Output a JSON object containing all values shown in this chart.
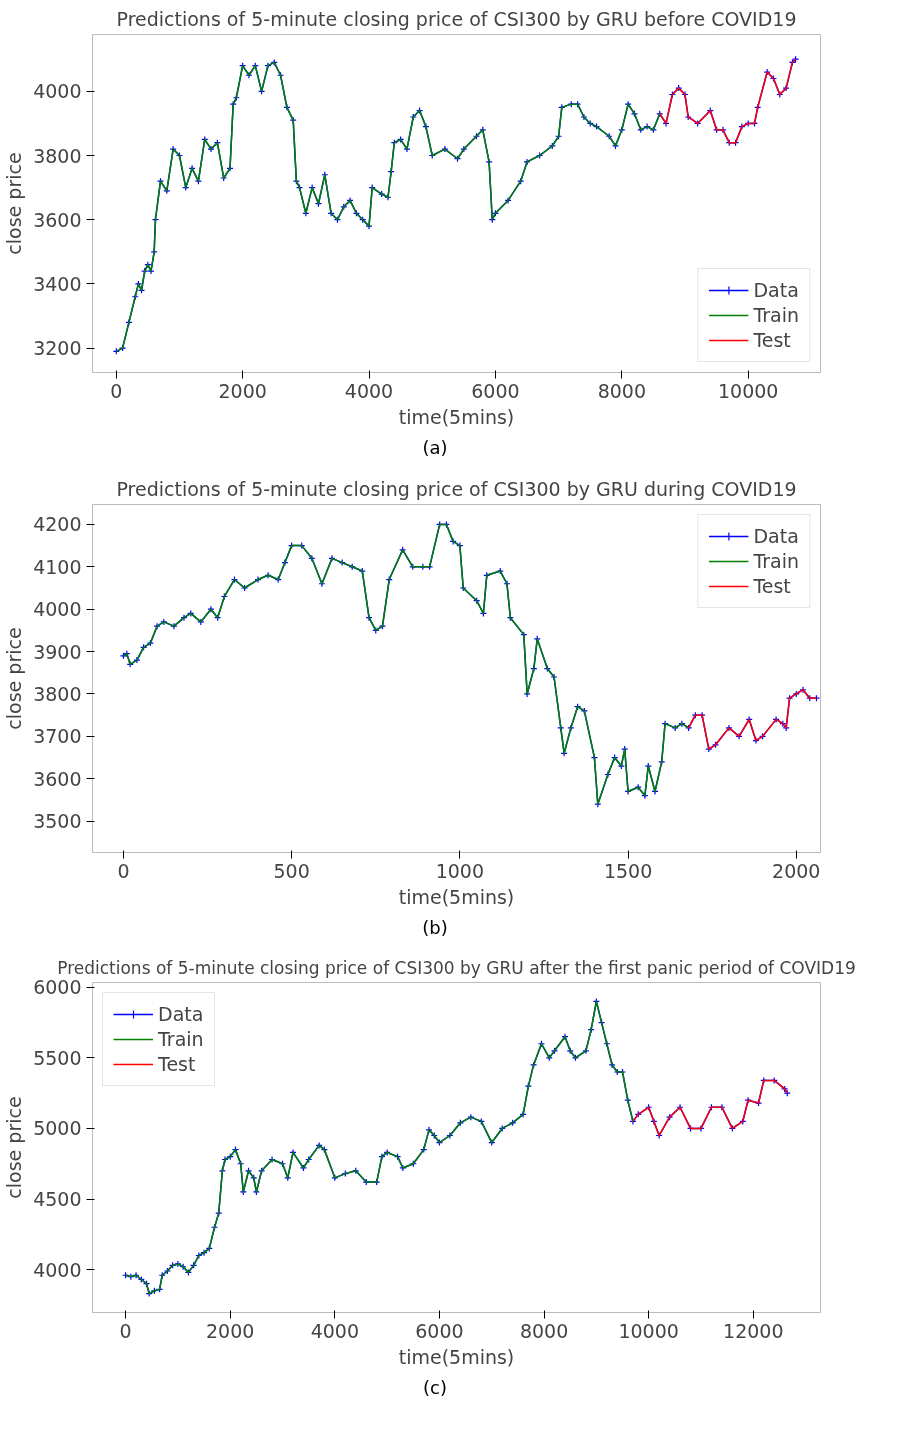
{
  "chart_data": [
    {
      "type": "line",
      "title": "Predictions of 5-minute closing price of CSI300 by GRU before COVID19",
      "xlabel": "time(5mins)",
      "ylabel": "close price",
      "annotations": [
        "(a)"
      ],
      "legend": "bottom right",
      "grid": false,
      "xlim": [
        -376,
        11144
      ],
      "ylim": [
        3124,
        4177
      ],
      "xticks": [
        0,
        2000,
        4000,
        6000,
        8000,
        10000
      ],
      "yticks": [
        3200,
        3400,
        3600,
        3800,
        4000
      ],
      "series": [
        {
          "name": "Data",
          "color": "#0000ff",
          "marker": "cross",
          "x": [
            0,
            100,
            200,
            300,
            350,
            400,
            450,
            500,
            550,
            600,
            620,
            700,
            800,
            900,
            1000,
            1100,
            1200,
            1300,
            1400,
            1500,
            1600,
            1700,
            1800,
            1850,
            1900,
            2000,
            2100,
            2200,
            2300,
            2400,
            2500,
            2600,
            2700,
            2800,
            2850,
            2900,
            3000,
            3100,
            3200,
            3300,
            3400,
            3500,
            3600,
            3700,
            3800,
            3900,
            4000,
            4050,
            4200,
            4300,
            4350,
            4400,
            4500,
            4600,
            4700,
            4800,
            4900,
            5000,
            5200,
            5400,
            5500,
            5700,
            5800,
            5900,
            5950,
            6000,
            6200,
            6400,
            6500,
            6700,
            6900,
            7000,
            7050,
            7200,
            7300,
            7400,
            7500,
            7600,
            7800,
            7900,
            8000,
            8100,
            8200,
            8300,
            8400,
            8500,
            8600,
            8700,
            8800,
            8900,
            9000,
            9050,
            9200,
            9400,
            9500,
            9600,
            9700,
            9800,
            9900,
            10000,
            10100,
            10150,
            10300,
            10400,
            10500,
            10600,
            10700,
            10750
          ],
          "values": [
            3190,
            3200,
            3280,
            3360,
            3400,
            3380,
            3440,
            3460,
            3440,
            3500,
            3600,
            3720,
            3690,
            3820,
            3800,
            3700,
            3760,
            3720,
            3850,
            3820,
            3840,
            3730,
            3760,
            3960,
            3980,
            4080,
            4050,
            4080,
            4000,
            4080,
            4090,
            4050,
            3950,
            3910,
            3720,
            3700,
            3620,
            3700,
            3650,
            3740,
            3620,
            3600,
            3640,
            3660,
            3620,
            3600,
            3580,
            3700,
            3680,
            3670,
            3750,
            3840,
            3850,
            3820,
            3920,
            3940,
            3890,
            3800,
            3820,
            3790,
            3820,
            3860,
            3880,
            3780,
            3600,
            3620,
            3660,
            3720,
            3780,
            3800,
            3830,
            3860,
            3950,
            3960,
            3960,
            3920,
            3900,
            3890,
            3860,
            3830,
            3880,
            3960,
            3930,
            3880,
            3890,
            3880,
            3930,
            3900,
            3990,
            4010,
            3990,
            3920,
            3900,
            3940,
            3880,
            3880,
            3840,
            3840,
            3890,
            3900,
            3900,
            3950,
            4060,
            4040,
            3990,
            4010,
            4090,
            4100
          ]
        },
        {
          "name": "Train",
          "color": "#008000",
          "marker": "none",
          "x": [
            0,
            100,
            200,
            300,
            350,
            400,
            450,
            500,
            550,
            600,
            620,
            700,
            800,
            900,
            1000,
            1100,
            1200,
            1300,
            1400,
            1500,
            1600,
            1700,
            1800,
            1850,
            1900,
            2000,
            2100,
            2200,
            2300,
            2400,
            2500,
            2600,
            2700,
            2800,
            2850,
            2900,
            3000,
            3100,
            3200,
            3300,
            3400,
            3500,
            3600,
            3700,
            3800,
            3900,
            4000,
            4050,
            4200,
            4300,
            4350,
            4400,
            4500,
            4600,
            4700,
            4800,
            4900,
            5000,
            5200,
            5400,
            5500,
            5700,
            5800,
            5900,
            5950,
            6000,
            6200,
            6400,
            6500,
            6700,
            6900,
            7000,
            7050,
            7200,
            7300,
            7400,
            7500,
            7600,
            7800,
            7900,
            8000,
            8100,
            8200,
            8300,
            8400,
            8500,
            8600
          ],
          "values": [
            3190,
            3200,
            3280,
            3360,
            3400,
            3380,
            3440,
            3460,
            3440,
            3500,
            3600,
            3720,
            3690,
            3820,
            3800,
            3700,
            3760,
            3720,
            3850,
            3820,
            3840,
            3730,
            3760,
            3960,
            3980,
            4080,
            4050,
            4080,
            4000,
            4080,
            4090,
            4050,
            3950,
            3910,
            3720,
            3700,
            3620,
            3700,
            3650,
            3740,
            3620,
            3600,
            3640,
            3660,
            3620,
            3600,
            3580,
            3700,
            3680,
            3670,
            3750,
            3840,
            3850,
            3820,
            3920,
            3940,
            3890,
            3800,
            3820,
            3790,
            3820,
            3860,
            3880,
            3780,
            3600,
            3620,
            3660,
            3720,
            3780,
            3800,
            3830,
            3860,
            3950,
            3960,
            3960,
            3920,
            3900,
            3890,
            3860,
            3830,
            3880,
            3960,
            3930,
            3880,
            3890,
            3880,
            3930
          ]
        },
        {
          "name": "Test",
          "color": "#ff0000",
          "marker": "none",
          "x": [
            8600,
            8700,
            8800,
            8900,
            9000,
            9050,
            9200,
            9400,
            9500,
            9600,
            9700,
            9800,
            9900,
            10000,
            10100,
            10150,
            10300,
            10400,
            10500,
            10600,
            10700,
            10750
          ],
          "values": [
            3930,
            3900,
            3990,
            4010,
            3990,
            3920,
            3900,
            3940,
            3880,
            3880,
            3840,
            3840,
            3890,
            3900,
            3900,
            3950,
            4060,
            4040,
            3990,
            4010,
            4090,
            4100
          ]
        }
      ]
    },
    {
      "type": "line",
      "title": "Predictions of 5-minute closing price of CSI300 by GRU during COVID19",
      "xlabel": "time(5mins)",
      "ylabel": "close price",
      "annotations": [
        "(b)"
      ],
      "legend": "top right",
      "grid": false,
      "xlim": [
        -92,
        2072
      ],
      "ylim": [
        3426,
        4247
      ],
      "xticks": [
        0,
        500,
        1000,
        1500,
        2000
      ],
      "yticks": [
        3500,
        3600,
        3700,
        3800,
        3900,
        4000,
        4100,
        4200
      ],
      "series": [
        {
          "name": "Data",
          "color": "#0000ff",
          "marker": "cross",
          "x": [
            0,
            10,
            20,
            40,
            60,
            80,
            100,
            120,
            150,
            180,
            200,
            230,
            260,
            280,
            300,
            330,
            360,
            400,
            430,
            460,
            480,
            500,
            530,
            560,
            590,
            620,
            650,
            680,
            710,
            730,
            750,
            770,
            790,
            830,
            860,
            890,
            910,
            940,
            960,
            980,
            1000,
            1010,
            1050,
            1070,
            1080,
            1120,
            1140,
            1150,
            1190,
            1200,
            1220,
            1230,
            1260,
            1280,
            1300,
            1310,
            1330,
            1350,
            1370,
            1400,
            1410,
            1440,
            1460,
            1480,
            1490,
            1500,
            1530,
            1550,
            1560,
            1580,
            1600,
            1610,
            1640,
            1660,
            1680,
            1700,
            1720,
            1740,
            1760,
            1800,
            1830,
            1860,
            1880,
            1900,
            1940,
            1960,
            1970,
            1980,
            2000,
            2020,
            2040,
            2060
          ],
          "values": [
            3890,
            3895,
            3870,
            3880,
            3910,
            3920,
            3960,
            3970,
            3960,
            3980,
            3990,
            3970,
            4000,
            3980,
            4030,
            4070,
            4050,
            4070,
            4080,
            4070,
            4110,
            4150,
            4150,
            4120,
            4060,
            4120,
            4110,
            4100,
            4090,
            3980,
            3950,
            3960,
            4070,
            4140,
            4100,
            4100,
            4100,
            4200,
            4200,
            4160,
            4150,
            4050,
            4020,
            3990,
            4080,
            4090,
            4060,
            3980,
            3940,
            3800,
            3860,
            3930,
            3860,
            3840,
            3720,
            3660,
            3720,
            3770,
            3760,
            3650,
            3540,
            3610,
            3650,
            3630,
            3670,
            3570,
            3580,
            3560,
            3630,
            3570,
            3640,
            3730,
            3720,
            3730,
            3720,
            3750,
            3750,
            3670,
            3680,
            3720,
            3700,
            3740,
            3690,
            3700,
            3740,
            3730,
            3720,
            3790,
            3800,
            3810,
            3790,
            3790
          ]
        },
        {
          "name": "Train",
          "color": "#008000",
          "marker": "none",
          "x": [
            0,
            10,
            20,
            40,
            60,
            80,
            100,
            120,
            150,
            180,
            200,
            230,
            260,
            280,
            300,
            330,
            360,
            400,
            430,
            460,
            480,
            500,
            530,
            560,
            590,
            620,
            650,
            680,
            710,
            730,
            750,
            770,
            790,
            830,
            860,
            890,
            910,
            940,
            960,
            980,
            1000,
            1010,
            1050,
            1070,
            1080,
            1120,
            1140,
            1150,
            1190,
            1200,
            1220,
            1230,
            1260,
            1280,
            1300,
            1310,
            1330,
            1350,
            1370,
            1400,
            1410,
            1440,
            1460,
            1480,
            1490,
            1500,
            1530,
            1550,
            1560,
            1580,
            1600,
            1610,
            1640,
            1660,
            1680
          ],
          "values": [
            3890,
            3895,
            3870,
            3880,
            3910,
            3920,
            3960,
            3970,
            3960,
            3980,
            3990,
            3970,
            4000,
            3980,
            4030,
            4070,
            4050,
            4070,
            4080,
            4070,
            4110,
            4150,
            4150,
            4120,
            4060,
            4120,
            4110,
            4100,
            4090,
            3980,
            3950,
            3960,
            4070,
            4140,
            4100,
            4100,
            4100,
            4200,
            4200,
            4160,
            4150,
            4050,
            4020,
            3990,
            4080,
            4090,
            4060,
            3980,
            3940,
            3800,
            3860,
            3930,
            3860,
            3840,
            3720,
            3660,
            3720,
            3770,
            3760,
            3650,
            3540,
            3610,
            3650,
            3630,
            3670,
            3570,
            3580,
            3560,
            3630,
            3570,
            3640,
            3730,
            3720,
            3730,
            3720
          ]
        },
        {
          "name": "Test",
          "color": "#ff0000",
          "marker": "none",
          "x": [
            1680,
            1700,
            1720,
            1740,
            1760,
            1800,
            1830,
            1860,
            1880,
            1900,
            1940,
            1960,
            1970,
            1980,
            2000,
            2020,
            2040,
            2060
          ],
          "values": [
            3720,
            3750,
            3750,
            3670,
            3680,
            3720,
            3700,
            3740,
            3690,
            3700,
            3740,
            3730,
            3720,
            3790,
            3800,
            3810,
            3790,
            3790
          ]
        }
      ]
    },
    {
      "type": "line",
      "title": "Predictions of 5-minute closing price of CSI300 by GRU after the first panic period of COVID19",
      "xlabel": "time(5mins)",
      "ylabel": "close price",
      "annotations": [
        "(c)"
      ],
      "legend": "top left",
      "grid": false,
      "xlim": [
        -633,
        13285
      ],
      "ylim": [
        3696,
        6034
      ],
      "xticks": [
        0,
        2000,
        4000,
        6000,
        8000,
        10000,
        12000
      ],
      "yticks": [
        4000,
        4500,
        5000,
        5500,
        6000
      ],
      "series": [
        {
          "name": "Data",
          "color": "#0000ff",
          "marker": "cross",
          "x": [
            0,
            100,
            200,
            300,
            400,
            450,
            550,
            650,
            700,
            800,
            900,
            1000,
            1100,
            1200,
            1300,
            1400,
            1500,
            1600,
            1700,
            1780,
            1850,
            1900,
            2000,
            2100,
            2200,
            2250,
            2350,
            2450,
            2500,
            2600,
            2800,
            3000,
            3100,
            3200,
            3400,
            3500,
            3700,
            3800,
            4000,
            4200,
            4400,
            4600,
            4800,
            4900,
            5000,
            5200,
            5300,
            5500,
            5700,
            5800,
            5900,
            6000,
            6200,
            6400,
            6600,
            6800,
            7000,
            7200,
            7400,
            7600,
            7700,
            7800,
            7950,
            8100,
            8200,
            8400,
            8500,
            8600,
            8800,
            8900,
            9000,
            9100,
            9200,
            9300,
            9400,
            9500,
            9600,
            9700,
            9800,
            10000,
            10100,
            10200,
            10400,
            10600,
            10800,
            11000,
            11200,
            11400,
            11600,
            11800,
            11900,
            12100,
            12200,
            12400,
            12600,
            12650
          ],
          "values": [
            3960,
            3950,
            3960,
            3930,
            3900,
            3830,
            3850,
            3860,
            3960,
            3990,
            4030,
            4040,
            4020,
            3980,
            4030,
            4100,
            4120,
            4150,
            4300,
            4400,
            4700,
            4780,
            4800,
            4850,
            4750,
            4550,
            4700,
            4650,
            4550,
            4700,
            4780,
            4750,
            4650,
            4830,
            4720,
            4780,
            4880,
            4850,
            4650,
            4680,
            4700,
            4620,
            4620,
            4800,
            4830,
            4800,
            4720,
            4750,
            4850,
            4990,
            4950,
            4900,
            4950,
            5040,
            5080,
            5050,
            4900,
            5000,
            5040,
            5100,
            5300,
            5450,
            5600,
            5500,
            5550,
            5650,
            5550,
            5500,
            5550,
            5700,
            5900,
            5750,
            5600,
            5450,
            5400,
            5400,
            5200,
            5050,
            5100,
            5150,
            5050,
            4950,
            5080,
            5150,
            5000,
            5000,
            5150,
            5150,
            5000,
            5050,
            5200,
            5180,
            5340,
            5340,
            5280,
            5250
          ]
        },
        {
          "name": "Train",
          "color": "#008000",
          "marker": "none",
          "x": [
            0,
            100,
            200,
            300,
            400,
            450,
            550,
            650,
            700,
            800,
            900,
            1000,
            1100,
            1200,
            1300,
            1400,
            1500,
            1600,
            1700,
            1780,
            1850,
            1900,
            2000,
            2100,
            2200,
            2250,
            2350,
            2450,
            2500,
            2600,
            2800,
            3000,
            3100,
            3200,
            3400,
            3500,
            3700,
            3800,
            4000,
            4200,
            4400,
            4600,
            4800,
            4900,
            5000,
            5200,
            5300,
            5500,
            5700,
            5800,
            5900,
            6000,
            6200,
            6400,
            6600,
            6800,
            7000,
            7200,
            7400,
            7600,
            7700,
            7800,
            7950,
            8100,
            8200,
            8400,
            8500,
            8600,
            8800,
            8900,
            9000,
            9100,
            9200,
            9300,
            9400,
            9500,
            9600,
            9700
          ],
          "values": [
            3960,
            3950,
            3960,
            3930,
            3900,
            3830,
            3850,
            3860,
            3960,
            3990,
            4030,
            4040,
            4020,
            3980,
            4030,
            4100,
            4120,
            4150,
            4300,
            4400,
            4700,
            4780,
            4800,
            4850,
            4750,
            4550,
            4700,
            4650,
            4550,
            4700,
            4780,
            4750,
            4650,
            4830,
            4720,
            4780,
            4880,
            4850,
            4650,
            4680,
            4700,
            4620,
            4620,
            4800,
            4830,
            4800,
            4720,
            4750,
            4850,
            4990,
            4950,
            4900,
            4950,
            5040,
            5080,
            5050,
            4900,
            5000,
            5040,
            5100,
            5300,
            5450,
            5600,
            5500,
            5550,
            5650,
            5550,
            5500,
            5550,
            5700,
            5900,
            5750,
            5600,
            5450,
            5400,
            5400,
            5200,
            5050
          ]
        },
        {
          "name": "Test",
          "color": "#ff0000",
          "marker": "none",
          "x": [
            9700,
            9800,
            10000,
            10100,
            10200,
            10400,
            10600,
            10800,
            11000,
            11200,
            11400,
            11600,
            11800,
            11900,
            12100,
            12200,
            12400,
            12600,
            12650
          ],
          "values": [
            5050,
            5100,
            5150,
            5050,
            4950,
            5080,
            5150,
            5000,
            5000,
            5150,
            5150,
            5000,
            5050,
            5200,
            5180,
            5340,
            5340,
            5280,
            5250
          ]
        }
      ]
    }
  ]
}
